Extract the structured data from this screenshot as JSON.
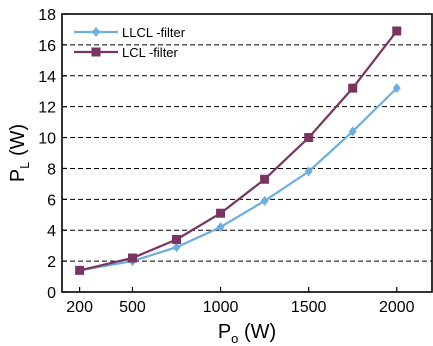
{
  "chart_data": {
    "type": "line",
    "x": [
      200,
      500,
      750,
      1000,
      1250,
      1500,
      1750,
      2000
    ],
    "xlim": [
      100,
      2200
    ],
    "ylim": [
      0,
      18
    ],
    "x_ticks": [
      200,
      500,
      1000,
      1500,
      2000
    ],
    "y_ticks": [
      0,
      2,
      4,
      6,
      8,
      10,
      12,
      14,
      16,
      18
    ],
    "grid": "horizontal-dashed",
    "legend_placement": "top-left",
    "ylabel": {
      "main": "P",
      "sub": "L",
      "unit": " (W)"
    },
    "xlabel": {
      "main": "P",
      "sub": "o",
      "unit": " (W)"
    },
    "series": [
      {
        "name": "LLCL -filter",
        "color": "#6baee0",
        "marker": "diamond",
        "values": [
          1.4,
          2.0,
          2.9,
          4.2,
          5.9,
          7.8,
          10.4,
          13.2
        ]
      },
      {
        "name": "LCL -filter",
        "color": "#7a3460",
        "marker": "square",
        "values": [
          1.4,
          2.2,
          3.4,
          5.1,
          7.3,
          10.0,
          13.2,
          16.9
        ]
      }
    ]
  }
}
